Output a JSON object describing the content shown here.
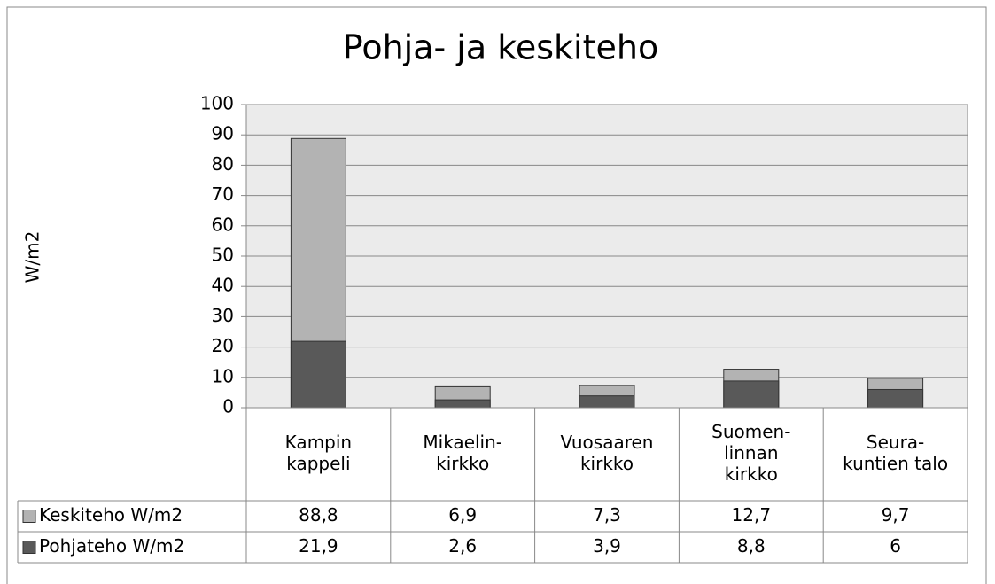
{
  "chart_data": {
    "type": "bar",
    "title": "Pohja- ja keskiteho",
    "y_label": "W/m2",
    "categories": [
      [
        "Kampin",
        "kappeli"
      ],
      [
        "Mikaelin-",
        "kirkko"
      ],
      [
        "Vuosaaren",
        "kirkko"
      ],
      [
        "Suomen-",
        "linnan",
        "kirkko"
      ],
      [
        "Seura-",
        "kuntien talo"
      ]
    ],
    "series": [
      {
        "name": "Keskiteho W/m2",
        "color": "#b3b3b3",
        "values": [
          88.8,
          6.9,
          7.3,
          12.7,
          9.7
        ],
        "value_labels": [
          "88,8",
          "6,9",
          "7,3",
          "12,7",
          "9,7"
        ]
      },
      {
        "name": "Pohjateho W/m2",
        "color": "#595959",
        "values": [
          21.9,
          2.6,
          3.9,
          8.8,
          6
        ],
        "value_labels": [
          "21,9",
          "2,6",
          "3,9",
          "8,8",
          "6"
        ]
      }
    ],
    "ylim": [
      0,
      100
    ],
    "yticks": [
      0,
      10,
      20,
      30,
      40,
      50,
      60,
      70,
      80,
      90,
      100
    ],
    "grid": true,
    "data_table": true
  }
}
